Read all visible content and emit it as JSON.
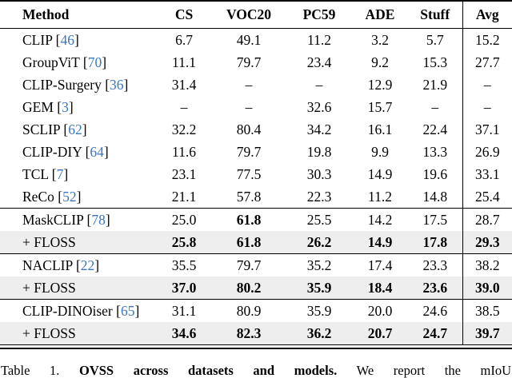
{
  "colors": {
    "citation_blue": "#3b77bd",
    "row_highlight": "#eeeeee"
  },
  "table": {
    "columns": [
      "Method",
      "CS",
      "VOC20",
      "PC59",
      "ADE",
      "Stuff",
      "Avg"
    ],
    "sections": [
      {
        "rows": [
          {
            "method": "CLIP",
            "cite": "46",
            "values": [
              "6.7",
              "49.1",
              "11.2",
              "3.2",
              "5.7",
              "15.2"
            ],
            "bold": [],
            "shaded": false
          },
          {
            "method": "GroupViT",
            "cite": "70",
            "values": [
              "11.1",
              "79.7",
              "23.4",
              "9.2",
              "15.3",
              "27.7"
            ],
            "bold": [],
            "shaded": false
          },
          {
            "method": "CLIP-Surgery",
            "cite": "36",
            "values": [
              "31.4",
              "–",
              "–",
              "12.9",
              "21.9",
              "–"
            ],
            "bold": [],
            "shaded": false
          },
          {
            "method": "GEM",
            "cite": "3",
            "values": [
              "–",
              "–",
              "32.6",
              "15.7",
              "–",
              "–"
            ],
            "bold": [],
            "shaded": false
          },
          {
            "method": "SCLIP",
            "cite": "62",
            "values": [
              "32.2",
              "80.4",
              "34.2",
              "16.1",
              "22.4",
              "37.1"
            ],
            "bold": [],
            "shaded": false
          },
          {
            "method": "CLIP-DIY",
            "cite": "64",
            "values": [
              "11.6",
              "79.7",
              "19.8",
              "9.9",
              "13.3",
              "26.9"
            ],
            "bold": [],
            "shaded": false
          },
          {
            "method": "TCL",
            "cite": "7",
            "values": [
              "23.1",
              "77.5",
              "30.3",
              "14.9",
              "19.6",
              "33.1"
            ],
            "bold": [],
            "shaded": false
          },
          {
            "method": "ReCo",
            "cite": "52",
            "values": [
              "21.1",
              "57.8",
              "22.3",
              "11.2",
              "14.8",
              "25.4"
            ],
            "bold": [],
            "shaded": false
          }
        ]
      },
      {
        "rows": [
          {
            "method": "MaskCLIP",
            "cite": "78",
            "values": [
              "25.0",
              "61.8",
              "25.5",
              "14.2",
              "17.5",
              "28.7"
            ],
            "bold": [
              1
            ],
            "shaded": false
          },
          {
            "method": "+ FLOSS",
            "cite": null,
            "values": [
              "25.8",
              "61.8",
              "26.2",
              "14.9",
              "17.8",
              "29.3"
            ],
            "bold": [
              0,
              1,
              2,
              3,
              4,
              5
            ],
            "shaded": true
          }
        ]
      },
      {
        "rows": [
          {
            "method": "NACLIP",
            "cite": "22",
            "values": [
              "35.5",
              "79.7",
              "35.2",
              "17.4",
              "23.3",
              "38.2"
            ],
            "bold": [],
            "shaded": false
          },
          {
            "method": "+ FLOSS",
            "cite": null,
            "values": [
              "37.0",
              "80.2",
              "35.9",
              "18.4",
              "23.6",
              "39.0"
            ],
            "bold": [
              0,
              1,
              2,
              3,
              4,
              5
            ],
            "shaded": true
          }
        ]
      },
      {
        "rows": [
          {
            "method": "CLIP-DINOiser",
            "cite": "65",
            "values": [
              "31.1",
              "80.9",
              "35.9",
              "20.0",
              "24.6",
              "38.5"
            ],
            "bold": [],
            "shaded": false
          },
          {
            "method": "+ FLOSS",
            "cite": null,
            "values": [
              "34.6",
              "82.3",
              "36.2",
              "20.7",
              "24.7",
              "39.7"
            ],
            "bold": [
              0,
              1,
              2,
              3,
              4,
              5
            ],
            "shaded": true
          }
        ]
      }
    ]
  },
  "caption": {
    "label": "Table 1.",
    "title_bold": "OVSS across datasets and models.",
    "text": "We report the mIoU"
  }
}
